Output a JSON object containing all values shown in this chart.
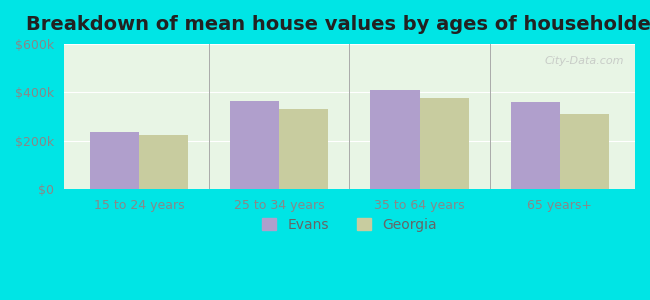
{
  "title": "Breakdown of mean house values by ages of householders",
  "categories": [
    "15 to 24 years",
    "25 to 34 years",
    "35 to 64 years",
    "65 years+"
  ],
  "evans_values": [
    235000,
    365000,
    410000,
    360000
  ],
  "georgia_values": [
    225000,
    330000,
    375000,
    310000
  ],
  "evans_color": "#b09fcc",
  "georgia_color": "#c8cc9f",
  "ylim": [
    0,
    600000
  ],
  "yticks": [
    0,
    200000,
    400000,
    600000
  ],
  "ytick_labels": [
    "$0",
    "$200k",
    "$400k",
    "$600k"
  ],
  "background_color": "#00e5e5",
  "plot_bg_top": "#e8f5e8",
  "plot_bg_bottom": "#f0f8f0",
  "legend_evans": "Evans",
  "legend_georgia": "Georgia",
  "watermark": "City-Data.com",
  "bar_width": 0.35,
  "title_fontsize": 14,
  "tick_fontsize": 9,
  "legend_fontsize": 10
}
